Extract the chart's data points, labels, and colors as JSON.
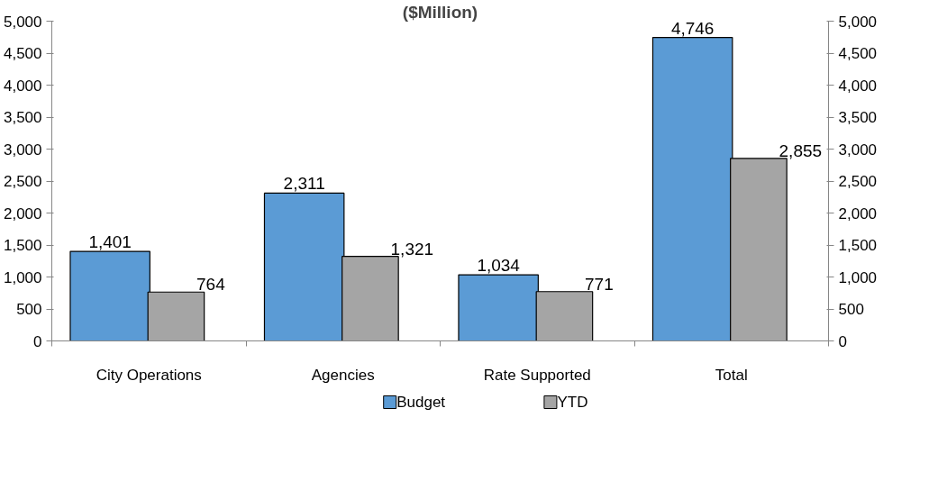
{
  "chart_data": {
    "type": "bar",
    "title": "($Million)",
    "categories": [
      "City Operations",
      "Agencies",
      "Rate Supported",
      "Total"
    ],
    "series": [
      {
        "name": "Budget",
        "color": "#5b9bd5",
        "values": [
          1401,
          2311,
          1034,
          4746
        ],
        "value_labels": [
          "1,401",
          "2,311",
          "1,034",
          "4,746"
        ]
      },
      {
        "name": "YTD",
        "color": "#a5a5a5",
        "values": [
          764,
          1321,
          771,
          2855
        ],
        "value_labels": [
          "764",
          "1,321",
          "771",
          "2,855"
        ]
      }
    ],
    "ylim": [
      0,
      5000
    ],
    "yticks": [
      0,
      500,
      {
        "value": 1000,
        "label": "1,000"
      },
      {
        "value": 1500,
        "label": "1,500"
      },
      {
        "value": 2000,
        "label": "2,000"
      },
      {
        "value": 2500,
        "label": "2,500"
      },
      {
        "value": 3000,
        "label": "3,000"
      },
      {
        "value": 3500,
        "label": "3,500"
      },
      {
        "value": 4000,
        "label": "4,000"
      },
      {
        "value": 4500,
        "label": "4,500"
      },
      {
        "value": 5000,
        "label": "5,000"
      }
    ],
    "y2lim": [
      0,
      5000
    ],
    "y2ticks": [
      0,
      500,
      {
        "value": 1000,
        "label": "1,000"
      },
      {
        "value": 1500,
        "label": "1,500"
      },
      {
        "value": 2000,
        "label": "2,000"
      },
      {
        "value": 2500,
        "label": "2,500"
      },
      {
        "value": 3000,
        "label": "3,000"
      },
      {
        "value": 3500,
        "label": "3,500"
      },
      {
        "value": 4000,
        "label": "4,000"
      },
      {
        "value": 4500,
        "label": "4,500"
      },
      {
        "value": 5000,
        "label": "5,000"
      }
    ],
    "legend": "bottom"
  }
}
